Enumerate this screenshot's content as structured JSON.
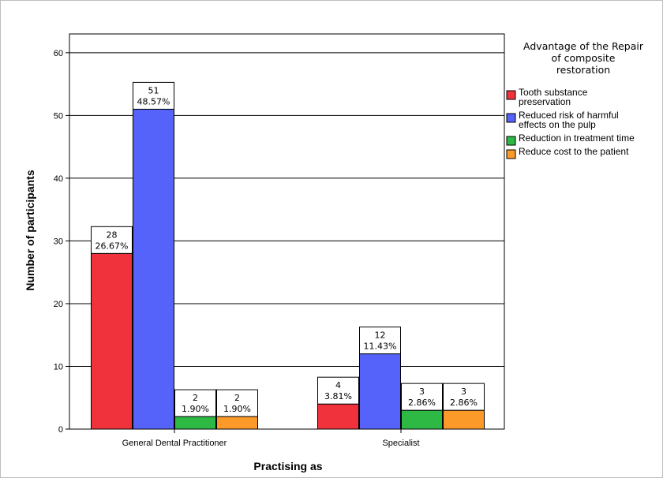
{
  "chart_data": {
    "type": "bar",
    "xlabel": "Practising as",
    "ylabel": "Number of participants",
    "categories": [
      "General Dental Practitioner",
      "Specialist"
    ],
    "ylim": [
      0,
      63
    ],
    "yticks": [
      0,
      10,
      20,
      30,
      40,
      50,
      60
    ],
    "grid": true,
    "legend_position": "right",
    "legend_title": [
      "Advantage of the Repair",
      "of composite",
      "restoration"
    ],
    "series": [
      {
        "name": "Tooth substance preservation",
        "legend_lines": [
          "Tooth substance",
          "preservation"
        ],
        "color": "#f0323c",
        "values": [
          28,
          4
        ],
        "labels": [
          [
            "28",
            "26.67%"
          ],
          [
            "4",
            "3.81%"
          ]
        ]
      },
      {
        "name": "Reduced risk of harmful effects on the pulp",
        "legend_lines": [
          "Reduced risk of harmful",
          "effects on the pulp"
        ],
        "color": "#5563fa",
        "values": [
          51,
          12
        ],
        "labels": [
          [
            "51",
            "48.57%"
          ],
          [
            "12",
            "11.43%"
          ]
        ]
      },
      {
        "name": "Reduction in treatment time",
        "legend_lines": [
          "Reduction in treatment time"
        ],
        "color": "#2eb844",
        "values": [
          2,
          3
        ],
        "labels": [
          [
            "2",
            "1.90%"
          ],
          [
            "3",
            "2.86%"
          ]
        ]
      },
      {
        "name": "Reduce cost to the patient",
        "legend_lines": [
          "Reduce cost to the patient"
        ],
        "color": "#fb9a29",
        "values": [
          2,
          3
        ],
        "labels": [
          [
            "2",
            "1.90%"
          ],
          [
            "3",
            "2.86%"
          ]
        ]
      }
    ]
  }
}
